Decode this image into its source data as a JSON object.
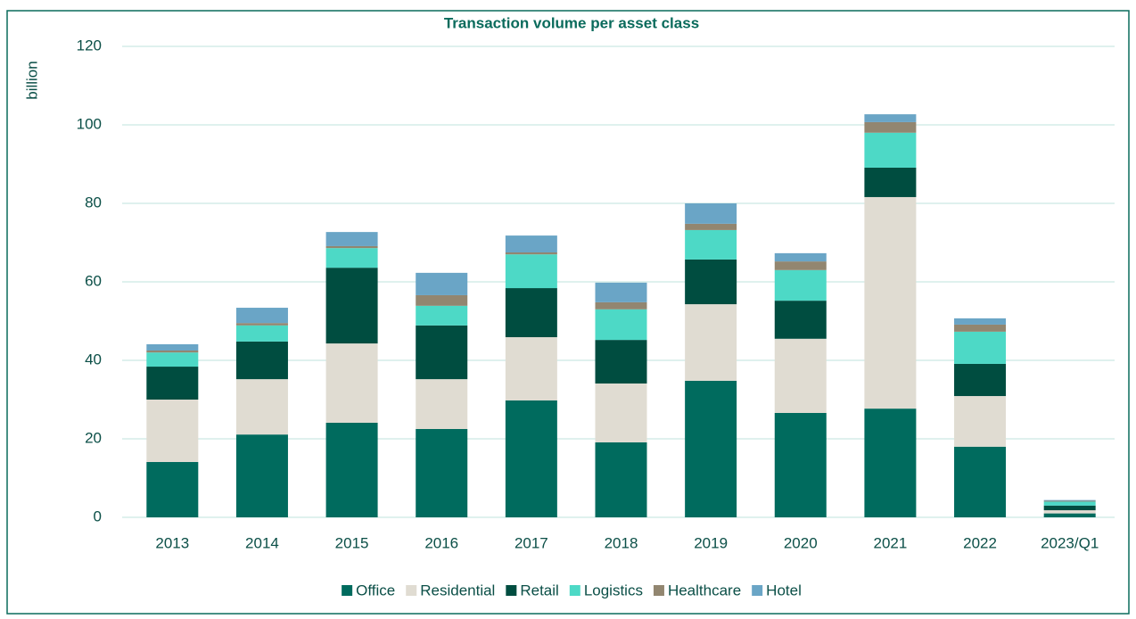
{
  "chart_data": {
    "type": "stacked_bar",
    "title": "Transaction volume per asset class",
    "y_label": "billion",
    "categories": [
      "2013",
      "2014",
      "2015",
      "2016",
      "2017",
      "2018",
      "2019",
      "2020",
      "2021",
      "2022",
      "2023/Q1"
    ],
    "series": [
      {
        "name": "Office",
        "color": "#006b5e",
        "values": [
          14.1,
          21.1,
          24.1,
          22.5,
          29.8,
          19.1,
          34.8,
          26.6,
          27.7,
          18.0,
          1.0
        ]
      },
      {
        "name": "Residential",
        "color": "#e0dcd2",
        "values": [
          15.9,
          14.1,
          20.2,
          12.7,
          16.1,
          15.0,
          19.5,
          18.9,
          53.9,
          12.9,
          0.8
        ]
      },
      {
        "name": "Retail",
        "color": "#004d40",
        "values": [
          8.4,
          9.6,
          19.3,
          13.7,
          12.5,
          11.1,
          11.4,
          9.7,
          7.5,
          8.2,
          1.2
        ]
      },
      {
        "name": "Logistics",
        "color": "#4dd9c6",
        "values": [
          3.6,
          4.1,
          5.0,
          5.0,
          8.6,
          7.8,
          7.5,
          7.8,
          8.9,
          8.2,
          1.0
        ]
      },
      {
        "name": "Healthcare",
        "color": "#928670",
        "values": [
          0.5,
          0.6,
          0.5,
          2.7,
          0.5,
          1.8,
          1.6,
          2.2,
          2.7,
          1.8,
          0.2
        ]
      },
      {
        "name": "Hotel",
        "color": "#6aa5c6",
        "values": [
          1.6,
          3.9,
          3.6,
          5.7,
          4.3,
          5.0,
          5.2,
          2.1,
          2.0,
          1.6,
          0.2
        ]
      }
    ],
    "ylim": [
      0,
      120
    ],
    "yticks": [
      0,
      20,
      40,
      60,
      80,
      100,
      120
    ],
    "grid": true,
    "legend": "bottom"
  }
}
